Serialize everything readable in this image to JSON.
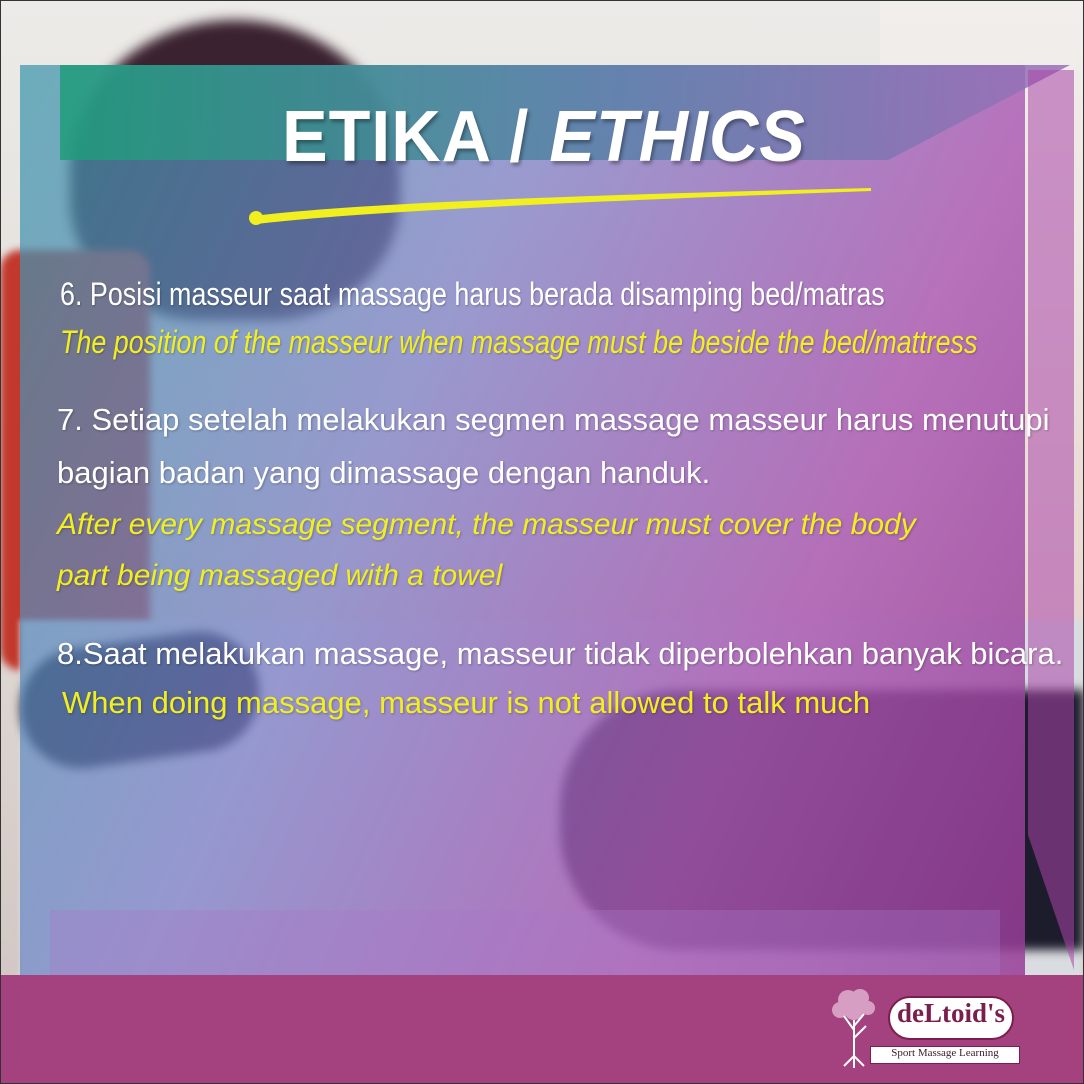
{
  "title": {
    "main": "ETIKA /",
    "italic": " ETHICS"
  },
  "items": [
    {
      "id_lines": [
        "6. Posisi masseur saat massage harus berada disamping bed/matras"
      ],
      "en_lines": [
        "The position of the masseur when massage must be beside the bed/mattress"
      ]
    },
    {
      "id_lines": [
        "7. Setiap setelah melakukan segmen massage masseur harus menutupi",
        "bagian badan yang dimassage dengan handuk."
      ],
      "en_lines": [
        "After every massage segment, the masseur must cover the body",
        "part being massaged with a towel"
      ]
    },
    {
      "id_lines": [
        "8.Saat melakukan massage, masseur tidak diperbolehkan banyak bicara."
      ],
      "en_lines": [
        "When doing massage, masseur is not allowed to talk much"
      ]
    }
  ],
  "logo": {
    "brand": "deLtoid's",
    "tagline": "Sport Massage Learning",
    "icon": "tree-icon"
  },
  "colors": {
    "title_text": "#ffffff",
    "accent_yellow": "#f2ef1e",
    "footer": "#a3427f",
    "brand": "#7a1f4d"
  }
}
